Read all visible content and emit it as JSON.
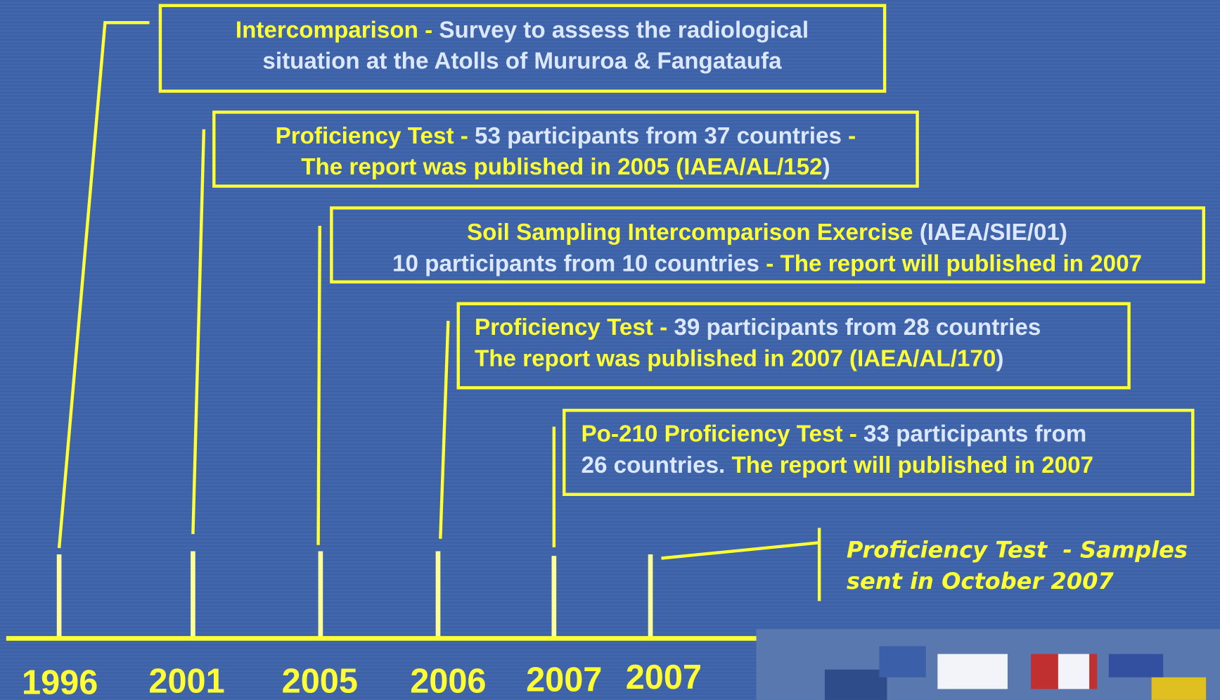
{
  "events": [
    {
      "lines": [
        [
          "Intercomparison",
          " - ",
          "Survey to assess the radiological"
        ],
        [
          "situation at the Atolls of Mururoa & Fangataufa"
        ]
      ]
    },
    {
      "lines": [
        [
          "Proficiency Test - ",
          "53 participants from 37 countries",
          " -"
        ],
        [
          "The report was published in 2005 (IAEA/AL/152",
          ")"
        ]
      ]
    },
    {
      "lines": [
        [
          "Soil Sampling Intercomparison Exercise ",
          "(IAEA/SIE/01)"
        ],
        [
          "10 participants from 10 countries",
          " - The report will published in 2007"
        ]
      ]
    },
    {
      "lines": [
        [
          "Proficiency Test - ",
          "39 participants from 28 countries"
        ],
        [
          "The report was published in 2007 (IAEA/AL/170",
          ")"
        ]
      ]
    },
    {
      "lines": [
        [
          "Po-210 Proficiency Test - ",
          "33 participants from"
        ],
        [
          "26 countries.",
          " The report will published in 2007"
        ]
      ]
    },
    {
      "lines": [
        [
          "Proficiency Test  - Samples"
        ],
        [
          "sent in October 2007"
        ]
      ]
    }
  ],
  "years": [
    "1996",
    "2001",
    "2005",
    "2006",
    "2007",
    "2007"
  ]
}
